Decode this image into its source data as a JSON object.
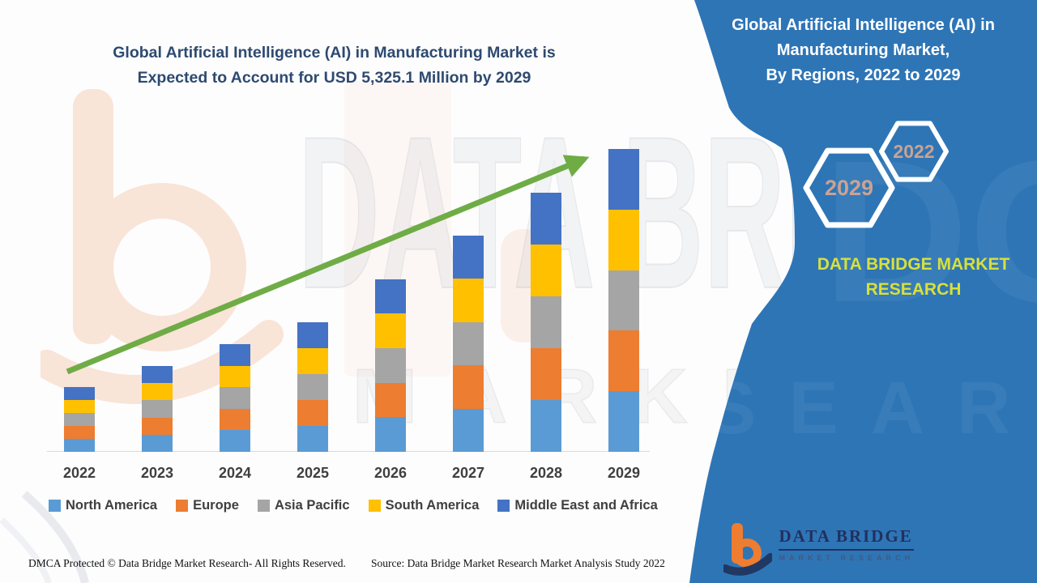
{
  "page": {
    "main_title_line1": "Global Artificial Intelligence (AI) in Manufacturing Market is",
    "main_title_line2": "Expected to Account for USD 5,325.1 Million by 2029"
  },
  "panel": {
    "bg_color": "#2E75B6",
    "title_line1": "Global Artificial Intelligence (AI) in",
    "title_line2": "Manufacturing Market,",
    "title_line3": "By Regions, 2022 to 2029",
    "hexagon_back_label": "2029",
    "hexagon_front_label": "2022",
    "hexagon_label_color": "#C9A394",
    "brand_text_line1": "DATA BRIDGE MARKET",
    "brand_text_line2": "RESEARCH",
    "brand_text_color": "#D8E03A"
  },
  "logo": {
    "name": "DATA BRIDGE",
    "subname": "MARKET RESEARCH"
  },
  "watermark": {
    "big_text": "DATA BRIDGE",
    "mid_text": "MARKET RESEARCH",
    "panel_big_text": "DGE",
    "panel_mid_text": "SEARCH"
  },
  "footer": {
    "left": "DMCA Protected © Data Bridge Market Research- All Rights Reserved.",
    "right": "Source: Data Bridge Market Research Market Analysis Study 2022"
  },
  "chart_data": {
    "type": "bar",
    "stacked": true,
    "title": "Global Artificial Intelligence (AI) in Manufacturing Market, By Regions, 2022 to 2029",
    "unit": "USD Million",
    "categories": [
      "2022",
      "2023",
      "2024",
      "2025",
      "2026",
      "2027",
      "2028",
      "2029"
    ],
    "series": [
      {
        "name": "North America",
        "color": "#5B9BD5",
        "values": [
          227.8,
          302.0,
          378.8,
          456.4,
          608.6,
          760.4,
          912.0,
          1065.0
        ]
      },
      {
        "name": "Europe",
        "color": "#ED7D31",
        "values": [
          227.8,
          302.0,
          378.8,
          456.4,
          608.6,
          760.4,
          912.0,
          1065.0
        ]
      },
      {
        "name": "Asia Pacific",
        "color": "#A5A5A5",
        "values": [
          227.8,
          302.0,
          378.8,
          456.4,
          608.6,
          760.4,
          912.0,
          1065.0
        ]
      },
      {
        "name": "South America",
        "color": "#FFC000",
        "values": [
          227.8,
          302.0,
          378.8,
          456.4,
          608.6,
          760.4,
          912.0,
          1065.0
        ]
      },
      {
        "name": "Middle East and Africa",
        "color": "#4472C4",
        "values": [
          227.8,
          302.0,
          378.8,
          456.4,
          608.6,
          760.4,
          912.0,
          1065.0
        ]
      }
    ],
    "totals": [
      1139.0,
      1510.0,
      1894.0,
      2282.0,
      3043.0,
      3802.0,
      4560.0,
      5325.1
    ],
    "highlight_value_2029": "USD 5,325.1 Million",
    "values_estimated_from_bar_heights": true,
    "ylim": [
      0,
      5325.1
    ],
    "grid": false,
    "trend_arrow": true,
    "trend_arrow_color": "#6FAC46",
    "legend_position": "bottom"
  }
}
